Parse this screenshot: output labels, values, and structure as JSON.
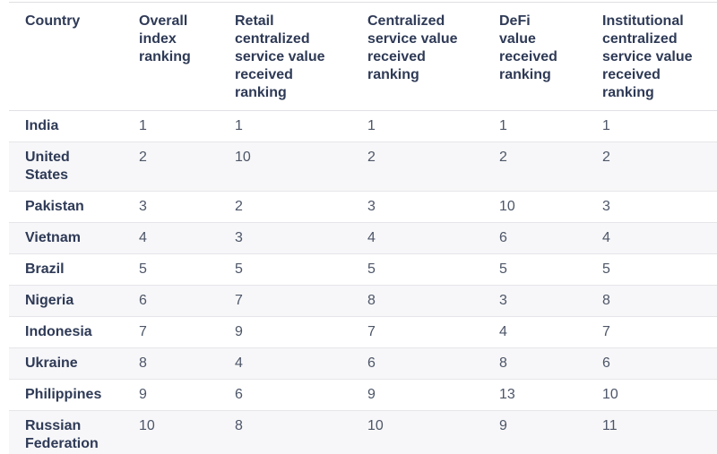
{
  "colors": {
    "header_text": "#2e3a56",
    "country_text": "#2e3a56",
    "number_text": "#4d5668",
    "row_stripe": "#f7f7f9",
    "border": "#e2e2e6",
    "background": "#ffffff"
  },
  "table": {
    "header": {
      "country": "Country",
      "overall": "Overall\nindex\nranking",
      "retail": "Retail\ncentralized\nservice value\nreceived\nranking",
      "centralized": "Centralized\nservice value\nreceived\nranking",
      "defi": "DeFi\nvalue\nreceived\nranking",
      "institutional": "Institutional\ncentralized\nservice value\nreceived\nranking"
    },
    "rows": [
      {
        "country": "India",
        "overall": "1",
        "retail": "1",
        "centralized": "1",
        "defi": "1",
        "institutional": "1"
      },
      {
        "country": "United\nStates",
        "overall": "2",
        "retail": "10",
        "centralized": "2",
        "defi": "2",
        "institutional": "2"
      },
      {
        "country": "Pakistan",
        "overall": "3",
        "retail": "2",
        "centralized": "3",
        "defi": "10",
        "institutional": "3"
      },
      {
        "country": "Vietnam",
        "overall": "4",
        "retail": "3",
        "centralized": "4",
        "defi": "6",
        "institutional": "4"
      },
      {
        "country": "Brazil",
        "overall": "5",
        "retail": "5",
        "centralized": "5",
        "defi": "5",
        "institutional": "5"
      },
      {
        "country": "Nigeria",
        "overall": "6",
        "retail": "7",
        "centralized": "8",
        "defi": "3",
        "institutional": "8"
      },
      {
        "country": "Indonesia",
        "overall": "7",
        "retail": "9",
        "centralized": "7",
        "defi": "4",
        "institutional": "7"
      },
      {
        "country": "Ukraine",
        "overall": "8",
        "retail": "4",
        "centralized": "6",
        "defi": "8",
        "institutional": "6"
      },
      {
        "country": "Philippines",
        "overall": "9",
        "retail": "6",
        "centralized": "9",
        "defi": "13",
        "institutional": "10"
      },
      {
        "country": "Russian\nFederation",
        "overall": "10",
        "retail": "8",
        "centralized": "10",
        "defi": "9",
        "institutional": "11"
      }
    ]
  },
  "chart_data": {
    "type": "table",
    "columns": [
      "Country",
      "Overall index ranking",
      "Retail centralized service value received ranking",
      "Centralized service value received ranking",
      "DeFi value received ranking",
      "Institutional centralized service value received ranking"
    ],
    "rows": [
      [
        "India",
        1,
        1,
        1,
        1,
        1
      ],
      [
        "United States",
        2,
        10,
        2,
        2,
        2
      ],
      [
        "Pakistan",
        3,
        2,
        3,
        10,
        3
      ],
      [
        "Vietnam",
        4,
        3,
        4,
        6,
        4
      ],
      [
        "Brazil",
        5,
        5,
        5,
        5,
        5
      ],
      [
        "Nigeria",
        6,
        7,
        8,
        3,
        8
      ],
      [
        "Indonesia",
        7,
        9,
        7,
        4,
        7
      ],
      [
        "Ukraine",
        8,
        4,
        6,
        8,
        6
      ],
      [
        "Philippines",
        9,
        6,
        9,
        13,
        10
      ],
      [
        "Russian Federation",
        10,
        8,
        10,
        9,
        11
      ]
    ]
  }
}
